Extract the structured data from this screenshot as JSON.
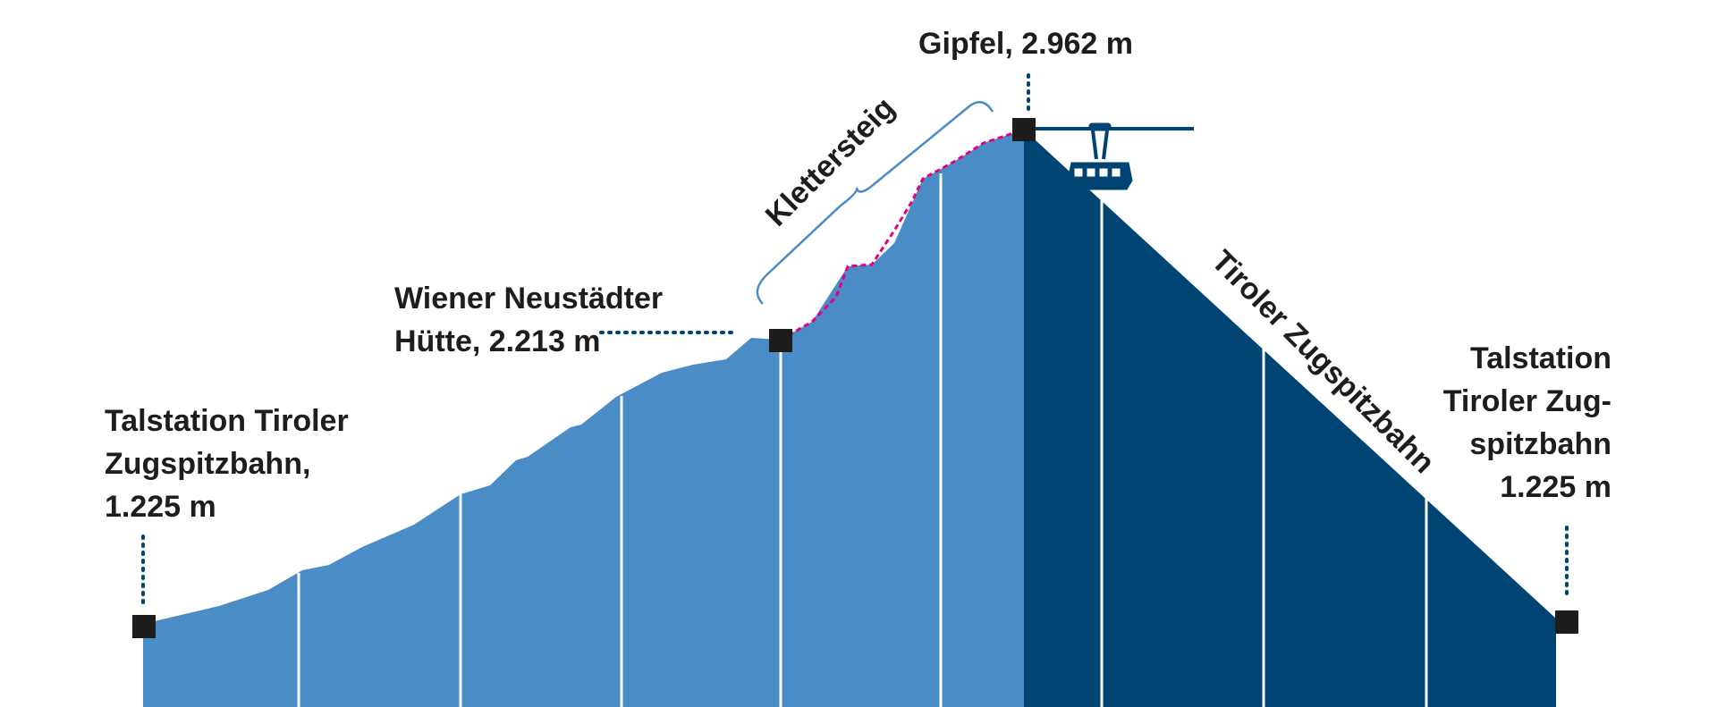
{
  "diagram": {
    "colors": {
      "ascent_fill": "#4a8cc6",
      "descent_fill": "#004474",
      "grid_line": "#ffffff",
      "marker": "#1d1d1b",
      "dotted_leader": "#004474",
      "route": "#e6007e",
      "bracket": "#4a8cc6",
      "cable": "#004474"
    },
    "stations": {
      "start": {
        "name_line1": "Talstation Tiroler",
        "name_line2": "Zugspitzbahn,",
        "altitude": "1.225 m"
      },
      "hut": {
        "name_line1": "Wiener Neustädter",
        "name_line2": "Hütte, 2.213 m"
      },
      "summit": {
        "label": "Gipfel, 2.962 m"
      },
      "end": {
        "name_line1": "Talstation",
        "name_line2": "Tiroler Zug-",
        "name_line3": "spitzbahn",
        "altitude": "1.225 m"
      }
    },
    "route_labels": {
      "klettersteig": "Klettersteig",
      "cable_car": "Tiroler Zugspitzbahn"
    },
    "icons": {
      "cable_car": "cable-car-gondola-icon"
    }
  }
}
